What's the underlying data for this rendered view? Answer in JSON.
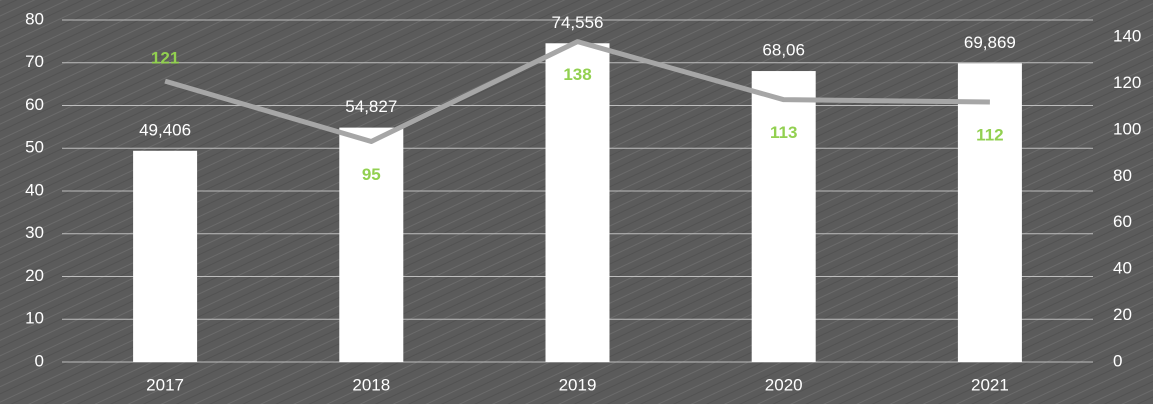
{
  "chart_data": {
    "type": "bar",
    "categories": [
      "2017",
      "2018",
      "2019",
      "2020",
      "2021"
    ],
    "series": [
      {
        "type": "bar",
        "color": "#ffffff",
        "values": [
          49.406,
          54.827,
          74.556,
          68.06,
          69.869
        ],
        "value_labels": [
          "49,406",
          "54,827",
          "74,556",
          "68,06",
          "69,869"
        ]
      },
      {
        "type": "line",
        "axis": "y2",
        "color": "#a6a6a6",
        "label_color": "#92d050",
        "values": [
          121,
          95,
          138,
          113,
          112
        ]
      }
    ],
    "ylim": [
      0,
      80
    ],
    "yticks": [
      0,
      10,
      20,
      30,
      40,
      50,
      60,
      70,
      80
    ],
    "y2lim": [
      0,
      140
    ],
    "y2ticks": [
      0,
      20,
      40,
      60,
      80,
      100,
      120,
      140
    ],
    "grid": true
  }
}
